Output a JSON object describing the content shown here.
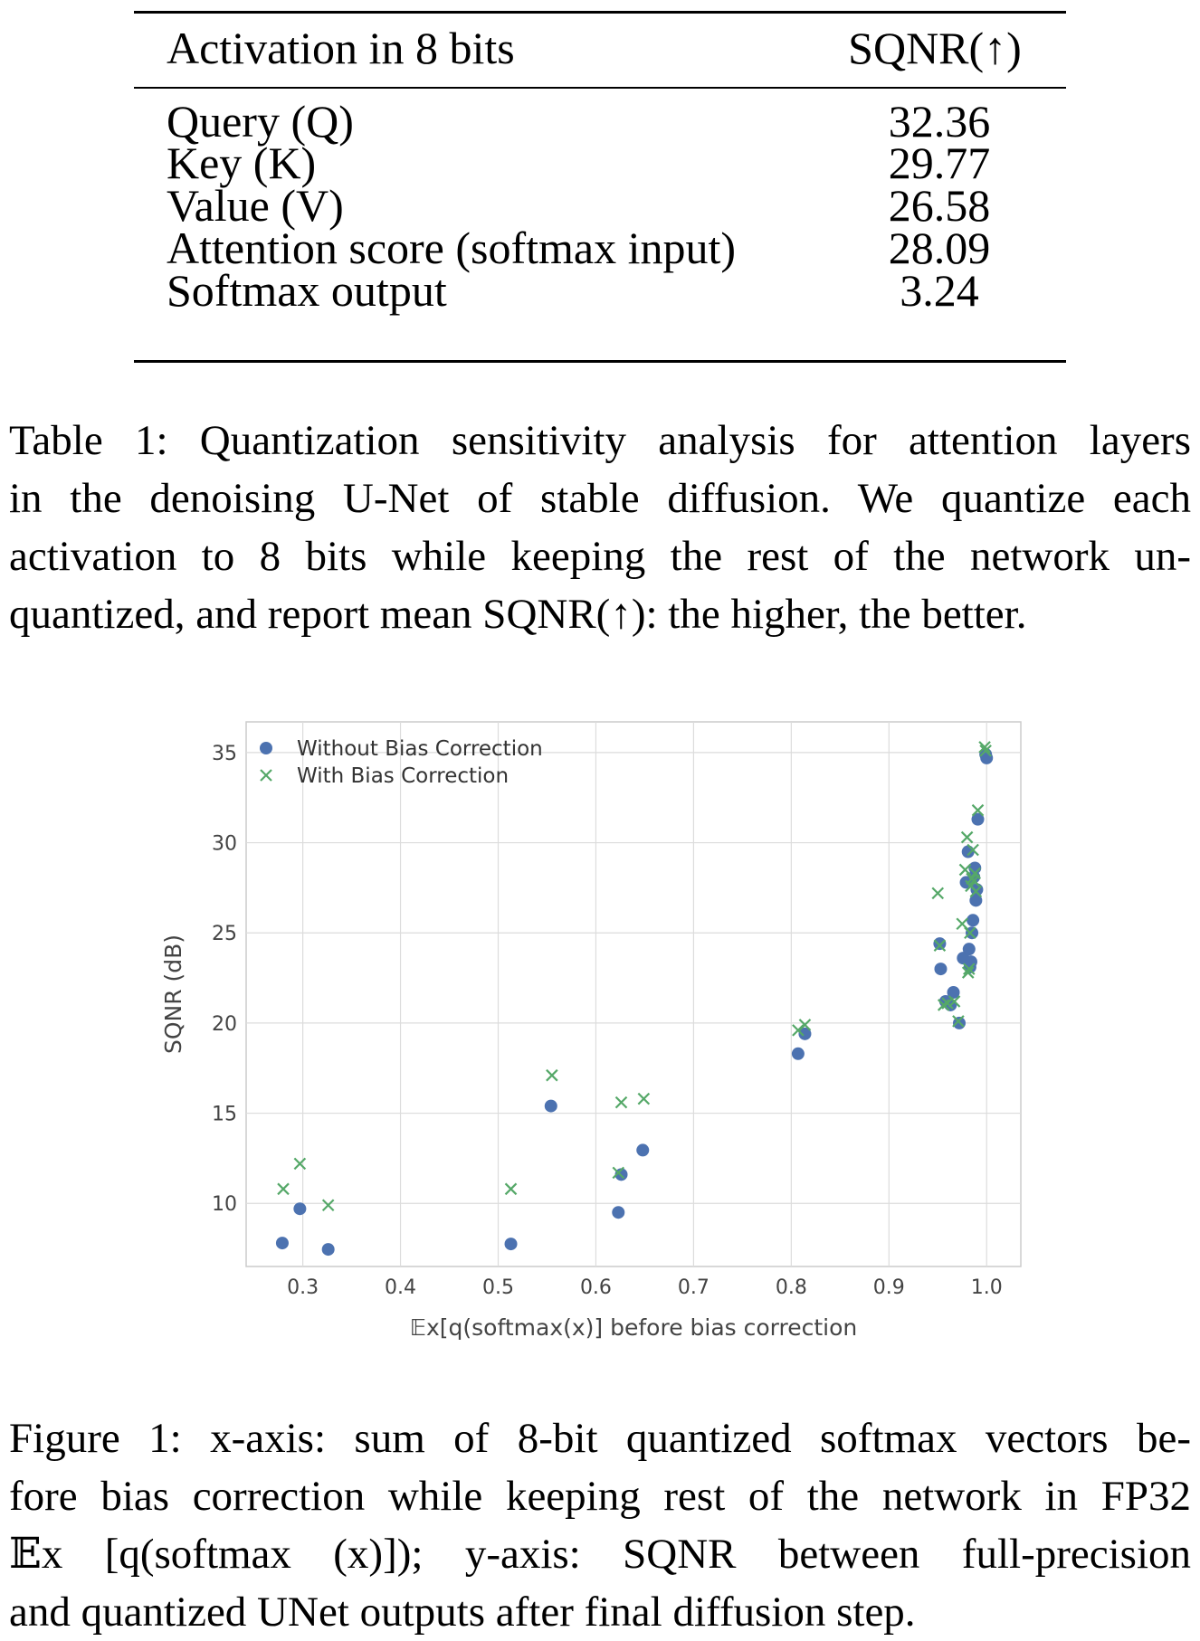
{
  "table": {
    "header": {
      "activation": "Activation in 8 bits",
      "metric": "SQNR(↑)"
    },
    "rows": [
      {
        "label": "Query (Q)",
        "value": "32.36"
      },
      {
        "label": "Key (K)",
        "value": "29.77"
      },
      {
        "label": "Value (V)",
        "value": "26.58"
      },
      {
        "label": "Attention score (softmax input)",
        "value": "28.09"
      },
      {
        "label": "Softmax output",
        "value": "3.24"
      }
    ],
    "caption_lines": [
      "Table 1: Quantization sensitivity analysis for attention layers",
      "in the denoising U-Net of stable diffusion.  We quantize each",
      "activation to 8 bits while keeping the rest of the network un-",
      "quantized, and report mean SQNR(↑): the higher, the better."
    ]
  },
  "figure": {
    "caption_lines": [
      "Figure 1: x-axis: sum of 8-bit quantized softmax vectors be-",
      "fore bias correction while keeping rest of the network in FP32",
      "𝔼x [q(softmax (x)]);  y-axis:  SQNR between full-precision",
      "and quantized UNet outputs after final diffusion step."
    ]
  },
  "chart_data": {
    "type": "scatter",
    "title": "",
    "xlabel": "𝔼x[q(softmax(x)] before bias correction",
    "ylabel": "SQNR (dB)",
    "xlim": [
      0.242,
      1.035
    ],
    "ylim": [
      6.5,
      36.7
    ],
    "xticks": [
      0.3,
      0.4,
      0.5,
      0.6,
      0.7,
      0.8,
      0.9,
      1.0
    ],
    "ytick_labels": [
      "10",
      "15",
      "20",
      "25",
      "30",
      "35"
    ],
    "xtick_labels": [
      "0.3",
      "0.4",
      "0.5",
      "0.6",
      "0.7",
      "0.8",
      "0.9",
      "1.0"
    ],
    "yticks": [
      10,
      15,
      20,
      25,
      30,
      35
    ],
    "grid": true,
    "legend_position": "top-left",
    "series": [
      {
        "name": "Without Bias Correction",
        "marker": "circle",
        "color": "#4c72b0",
        "points": [
          [
            0.279,
            7.8
          ],
          [
            0.297,
            9.7
          ],
          [
            0.326,
            7.45
          ],
          [
            0.513,
            7.75
          ],
          [
            0.554,
            15.4
          ],
          [
            0.623,
            9.5
          ],
          [
            0.626,
            11.6
          ],
          [
            0.648,
            12.95
          ],
          [
            0.807,
            18.3
          ],
          [
            0.814,
            19.4
          ],
          [
            0.952,
            24.4
          ],
          [
            0.953,
            23.0
          ],
          [
            0.958,
            21.2
          ],
          [
            0.963,
            21.0
          ],
          [
            0.966,
            21.7
          ],
          [
            0.972,
            20.0
          ],
          [
            0.976,
            23.6
          ],
          [
            0.979,
            27.8
          ],
          [
            0.981,
            29.5
          ],
          [
            0.982,
            24.1
          ],
          [
            0.983,
            23.1
          ],
          [
            0.984,
            23.4
          ],
          [
            0.985,
            25.0
          ],
          [
            0.986,
            25.7
          ],
          [
            0.987,
            28.1
          ],
          [
            0.988,
            28.6
          ],
          [
            0.989,
            26.8
          ],
          [
            0.99,
            27.4
          ],
          [
            0.991,
            31.3
          ],
          [
            0.999,
            34.9
          ],
          [
            1.0,
            34.7
          ]
        ]
      },
      {
        "name": "With Bias Correction",
        "marker": "x",
        "color": "#55a868",
        "points": [
          [
            0.28,
            10.8
          ],
          [
            0.297,
            12.2
          ],
          [
            0.326,
            9.9
          ],
          [
            0.513,
            10.8
          ],
          [
            0.555,
            17.1
          ],
          [
            0.623,
            11.7
          ],
          [
            0.626,
            15.6
          ],
          [
            0.649,
            15.8
          ],
          [
            0.807,
            19.6
          ],
          [
            0.814,
            19.9
          ],
          [
            0.95,
            27.2
          ],
          [
            0.952,
            24.3
          ],
          [
            0.956,
            21.0
          ],
          [
            0.96,
            21.1
          ],
          [
            0.967,
            21.2
          ],
          [
            0.971,
            20.1
          ],
          [
            0.975,
            25.5
          ],
          [
            0.978,
            28.5
          ],
          [
            0.98,
            30.3
          ],
          [
            0.981,
            22.8
          ],
          [
            0.982,
            23.0
          ],
          [
            0.983,
            25.0
          ],
          [
            0.984,
            27.6
          ],
          [
            0.985,
            28.0
          ],
          [
            0.986,
            29.6
          ],
          [
            0.987,
            27.9
          ],
          [
            0.988,
            28.3
          ],
          [
            0.989,
            27.3
          ],
          [
            0.991,
            31.8
          ],
          [
            0.998,
            35.3
          ],
          [
            0.999,
            35.1
          ]
        ]
      }
    ]
  }
}
